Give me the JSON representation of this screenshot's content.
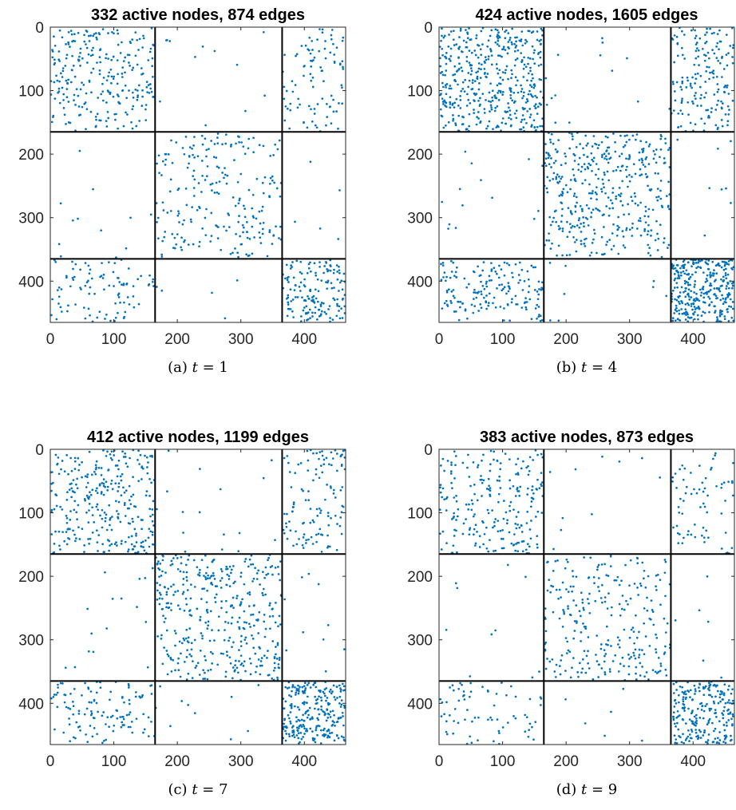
{
  "chart_data": [
    {
      "type": "scatter",
      "title": "332 active nodes, 874 edges",
      "caption": "(a) t = 1",
      "caption_prefix": "(a)",
      "caption_var": "t",
      "caption_value": "1",
      "xlim": [
        0,
        465
      ],
      "ylim": [
        0,
        465
      ],
      "y_reversed": true,
      "xticks": [
        0,
        100,
        200,
        300,
        400
      ],
      "yticks": [
        0,
        100,
        200,
        300,
        400
      ],
      "block_boundaries": [
        165,
        365
      ],
      "marker_color": "#0072BD",
      "seed": 101,
      "block_counts": [
        [
          260,
          12,
          95
        ],
        [
          12,
          230,
          5
        ],
        [
          95,
          5,
          160
        ]
      ],
      "x": [],
      "y": []
    },
    {
      "type": "scatter",
      "title": "424 active nodes, 1605 edges",
      "caption": "(b) t = 4",
      "caption_prefix": "(b)",
      "caption_var": "t",
      "caption_value": "4",
      "xlim": [
        0,
        465
      ],
      "ylim": [
        0,
        465
      ],
      "y_reversed": true,
      "xticks": [
        0,
        100,
        200,
        300,
        400
      ],
      "yticks": [
        0,
        100,
        200,
        300,
        400
      ],
      "block_boundaries": [
        165,
        365
      ],
      "marker_color": "#0072BD",
      "seed": 202,
      "block_counts": [
        [
          460,
          14,
          170
        ],
        [
          14,
          420,
          8
        ],
        [
          170,
          8,
          330
        ]
      ],
      "x": [],
      "y": []
    },
    {
      "type": "scatter",
      "title": "412 active nodes, 1199 edges",
      "caption": "(c) t = 7",
      "caption_prefix": "(c)",
      "caption_var": "t",
      "caption_value": "7",
      "xlim": [
        0,
        465
      ],
      "ylim": [
        0,
        465
      ],
      "y_reversed": true,
      "xticks": [
        0,
        100,
        200,
        300,
        400
      ],
      "yticks": [
        0,
        100,
        200,
        300,
        400
      ],
      "block_boundaries": [
        165,
        365
      ],
      "marker_color": "#0072BD",
      "seed": 303,
      "block_counts": [
        [
          300,
          16,
          120
        ],
        [
          16,
          400,
          10
        ],
        [
          120,
          10,
          250
        ]
      ],
      "x": [],
      "y": []
    },
    {
      "type": "scatter",
      "title": "383 active nodes, 873 edges",
      "caption": "(d) t = 9",
      "caption_prefix": "(d)",
      "caption_var": "t",
      "caption_value": "9",
      "xlim": [
        0,
        465
      ],
      "ylim": [
        0,
        465
      ],
      "y_reversed": true,
      "xticks": [
        0,
        100,
        200,
        300,
        400
      ],
      "yticks": [
        0,
        100,
        200,
        300,
        400
      ],
      "block_boundaries": [
        165,
        365
      ],
      "marker_color": "#0072BD",
      "seed": 404,
      "block_counts": [
        [
          230,
          10,
          70
        ],
        [
          10,
          270,
          6
        ],
        [
          70,
          6,
          230
        ]
      ],
      "x": [],
      "y": []
    }
  ]
}
